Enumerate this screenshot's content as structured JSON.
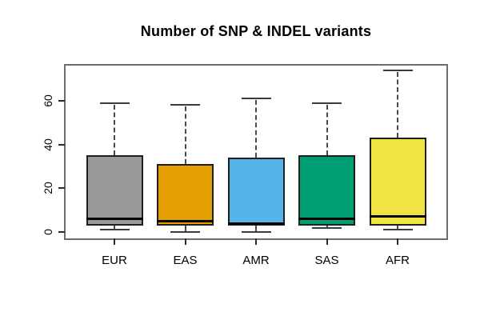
{
  "title": "Number of SNP & INDEL variants",
  "chart_data": {
    "type": "boxplot",
    "title": "Number of SNP & INDEL variants",
    "xlabel": "",
    "ylabel": "",
    "categories": [
      "EUR",
      "EAS",
      "AMR",
      "SAS",
      "AFR"
    ],
    "series": [
      {
        "name": "EUR",
        "color": "#999999",
        "whisker_low": 1,
        "q1": 3,
        "median": 6,
        "q3": 35,
        "whisker_high": 59
      },
      {
        "name": "EAS",
        "color": "#E69F00",
        "whisker_low": 0,
        "q1": 3,
        "median": 5,
        "q3": 31,
        "whisker_high": 58
      },
      {
        "name": "AMR",
        "color": "#56B4E9",
        "whisker_low": 0,
        "q1": 3,
        "median": 4,
        "q3": 34,
        "whisker_high": 61
      },
      {
        "name": "SAS",
        "color": "#009E73",
        "whisker_low": 2,
        "q1": 3,
        "median": 6,
        "q3": 35,
        "whisker_high": 59
      },
      {
        "name": "AFR",
        "color": "#F0E442",
        "whisker_low": 1,
        "q1": 3,
        "median": 7,
        "q3": 43,
        "whisker_high": 74
      }
    ],
    "y_ticks": [
      0,
      20,
      40,
      60
    ],
    "ylim": [
      -3,
      77
    ],
    "grid": false,
    "legend": false,
    "frame_color": "#6e6e6e",
    "box_border_color": "#1f1f1f",
    "median_color": "#000000",
    "whisker_color": "#4a4a4a",
    "text_color": "#000000"
  }
}
